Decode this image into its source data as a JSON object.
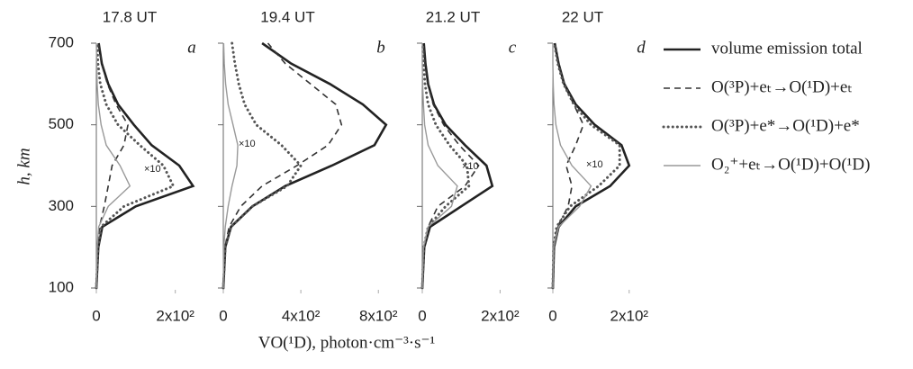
{
  "xlabel": "VO(¹D), photon·cm⁻³·s⁻¹",
  "ylabel": "h, km",
  "chart_data": [
    {
      "type": "line",
      "title": "17.8 UT",
      "panel": "a",
      "annotation": "×10",
      "y": [
        100,
        200,
        250,
        300,
        350,
        400,
        450,
        500,
        550,
        600,
        650,
        700
      ],
      "ylim": [
        100,
        700
      ],
      "yticks": [
        100,
        300,
        500,
        700
      ],
      "xlim": [
        0,
        260
      ],
      "xticks": [
        0,
        {
          "value": 200,
          "label": "2x10²"
        }
      ],
      "series": [
        {
          "name": "volume emission total",
          "style": "solid-thick",
          "color": "#222222",
          "values": [
            0,
            5,
            15,
            100,
            245,
            210,
            140,
            95,
            55,
            30,
            14,
            6
          ]
        },
        {
          "name": "O(³P)+eₜ→O(¹D)+eₜ",
          "style": "dashed",
          "color": "#333333",
          "values": [
            0,
            3,
            8,
            20,
            30,
            40,
            70,
            80,
            50,
            28,
            13,
            6
          ]
        },
        {
          "name": "O(³P)+e*→O(¹D)+e*",
          "style": "dotted",
          "color": "#555555",
          "values": [
            0,
            4,
            12,
            70,
            195,
            170,
            110,
            55,
            25,
            10,
            4,
            2
          ]
        },
        {
          "name": "O₂⁺+eₜ→O(¹D)+O(¹D)",
          "style": "thin",
          "color": "#999999",
          "values": [
            0,
            2,
            6,
            30,
            85,
            60,
            25,
            12,
            5,
            2,
            1,
            0
          ]
        }
      ]
    },
    {
      "type": "line",
      "title": "19.4 UT",
      "panel": "b",
      "annotation": "×10",
      "y": [
        100,
        200,
        250,
        300,
        350,
        400,
        450,
        500,
        550,
        600,
        650,
        700
      ],
      "xlim": [
        0,
        850
      ],
      "xticks": [
        0,
        {
          "value": 400,
          "label": "4x10²"
        },
        {
          "value": 800,
          "label": "8x10²"
        }
      ],
      "series": [
        {
          "style": "solid-thick",
          "color": "#222222",
          "values": [
            0,
            10,
            40,
            150,
            320,
            560,
            780,
            840,
            720,
            550,
            350,
            200
          ]
        },
        {
          "style": "dashed",
          "color": "#333333",
          "values": [
            0,
            8,
            30,
            90,
            200,
            380,
            540,
            610,
            580,
            450,
            320,
            230
          ]
        },
        {
          "style": "dotted",
          "color": "#555555",
          "values": [
            0,
            10,
            40,
            150,
            330,
            400,
            300,
            170,
            110,
            80,
            60,
            45
          ]
        },
        {
          "style": "thin",
          "color": "#999999",
          "values": [
            0,
            3,
            10,
            25,
            45,
            70,
            75,
            50,
            25,
            12,
            5,
            2
          ]
        }
      ]
    },
    {
      "type": "line",
      "title": "21.2 UT",
      "panel": "c",
      "annotation": "×10",
      "y": [
        100,
        200,
        250,
        300,
        350,
        400,
        450,
        500,
        550,
        600,
        650,
        700
      ],
      "xlim": [
        0,
        250
      ],
      "xticks": [
        0,
        {
          "value": 200,
          "label": "2x10²"
        }
      ],
      "series": [
        {
          "style": "solid-thick",
          "color": "#222222",
          "values": [
            0,
            5,
            20,
            100,
            180,
            165,
            110,
            60,
            30,
            15,
            8,
            4
          ]
        },
        {
          "style": "dashed",
          "color": "#333333",
          "values": [
            0,
            4,
            15,
            40,
            110,
            145,
            95,
            55,
            28,
            14,
            7,
            3
          ]
        },
        {
          "style": "dotted",
          "color": "#555555",
          "values": [
            0,
            4,
            15,
            60,
            120,
            115,
            70,
            35,
            15,
            7,
            3,
            1
          ]
        },
        {
          "style": "thin",
          "color": "#999999",
          "values": [
            0,
            3,
            15,
            75,
            90,
            40,
            15,
            6,
            3,
            1,
            0,
            0
          ]
        }
      ]
    },
    {
      "type": "line",
      "title": "22 UT",
      "panel": "d",
      "annotation": "×10",
      "y": [
        100,
        200,
        250,
        300,
        350,
        400,
        450,
        500,
        550,
        600,
        650,
        700
      ],
      "xlim": [
        0,
        250
      ],
      "xticks": [
        0,
        {
          "value": 200,
          "label": "2x10²"
        }
      ],
      "series": [
        {
          "style": "solid-thick",
          "color": "#222222",
          "values": [
            0,
            3,
            15,
            60,
            150,
            200,
            180,
            110,
            60,
            30,
            15,
            5
          ]
        },
        {
          "style": "dashed",
          "color": "#333333",
          "values": [
            0,
            3,
            12,
            40,
            50,
            35,
            60,
            80,
            55,
            28,
            14,
            5
          ]
        },
        {
          "style": "dotted",
          "color": "#555555",
          "values": [
            0,
            2,
            10,
            45,
            120,
            175,
            175,
            100,
            55,
            28,
            13,
            4
          ]
        },
        {
          "style": "thin",
          "color": "#999999",
          "values": [
            0,
            2,
            15,
            70,
            100,
            50,
            20,
            8,
            3,
            1,
            0,
            0
          ]
        }
      ]
    }
  ]
}
